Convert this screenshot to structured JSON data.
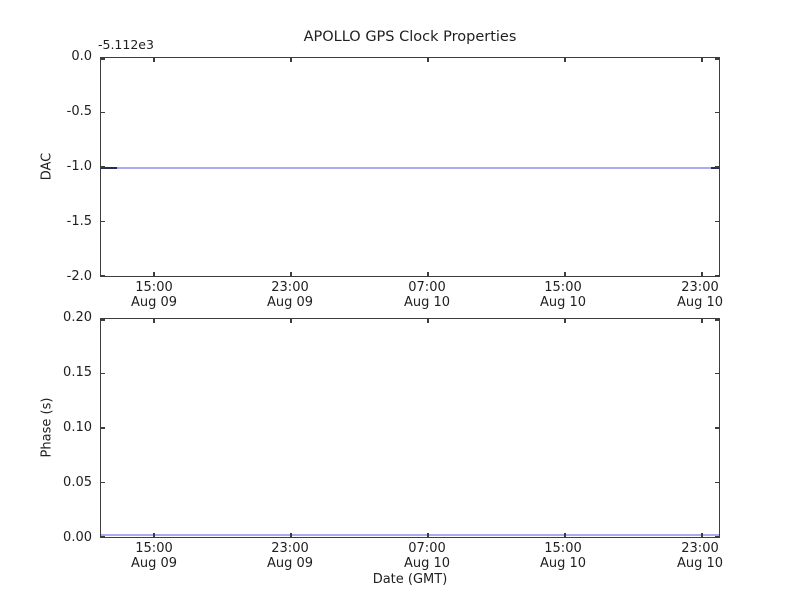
{
  "figure": {
    "title": "APOLLO GPS Clock Properties"
  },
  "top_plot": {
    "ylabel": "DAC",
    "offset_text": "-5.112e3",
    "yticks": [
      "0.0",
      "-0.5",
      "-1.0",
      "-1.5",
      "-2.0"
    ]
  },
  "bottom_plot": {
    "ylabel": "Phase (s)",
    "xlabel": "Date (GMT)",
    "yticks": [
      "0.20",
      "0.15",
      "0.10",
      "0.05",
      "0.00"
    ]
  },
  "xticks": [
    {
      "time": "15:00",
      "date": "Aug 09"
    },
    {
      "time": "23:00",
      "date": "Aug 09"
    },
    {
      "time": "07:00",
      "date": "Aug 10"
    },
    {
      "time": "15:00",
      "date": "Aug 10"
    },
    {
      "time": "23:00",
      "date": "Aug 10"
    }
  ],
  "colors": {
    "line": "#a9aaf2",
    "line_tip": "#232c56",
    "spine": "#3d3d3d",
    "text": "#1f1f1f",
    "background": "#ffffff"
  },
  "chart_data": [
    {
      "type": "line",
      "title": "APOLLO GPS Clock Properties",
      "xlabel": "",
      "ylabel": "DAC",
      "y_axis_offset_text": "-5.112e3",
      "ylim": [
        -2.0,
        0.0
      ],
      "yticks": [
        0.0,
        -0.5,
        -1.0,
        -1.5,
        -2.0
      ],
      "xtick_labels": [
        "15:00 Aug 09",
        "23:00 Aug 09",
        "07:00 Aug 10",
        "15:00 Aug 10",
        "23:00 Aug 10"
      ],
      "xlim_estimate": [
        "Aug 09 ~11:50 GMT",
        "Aug 11 ~00:10 GMT"
      ],
      "grid": false,
      "legend": null,
      "series": [
        {
          "name": "DAC",
          "shape": "constant horizontal line across full x-range",
          "y_displayed": -1.01,
          "y_actual_including_offset": -5113.0,
          "note": "darker dense segments at extreme left and right ends of line"
        }
      ]
    },
    {
      "type": "line",
      "title": "",
      "xlabel": "Date (GMT)",
      "ylabel": "Phase (s)",
      "ylim": [
        0.0,
        0.2
      ],
      "yticks": [
        0.0,
        0.05,
        0.1,
        0.15,
        0.2
      ],
      "xtick_labels": [
        "15:00 Aug 09",
        "23:00 Aug 09",
        "07:00 Aug 10",
        "15:00 Aug 10",
        "23:00 Aug 10"
      ],
      "xlim_estimate": [
        "Aug 09 ~11:50 GMT",
        "Aug 11 ~00:10 GMT"
      ],
      "grid": false,
      "legend": null,
      "series": [
        {
          "name": "Phase (s)",
          "shape": "constant horizontal line across full x-range",
          "y_displayed": 0.002
        }
      ]
    }
  ]
}
